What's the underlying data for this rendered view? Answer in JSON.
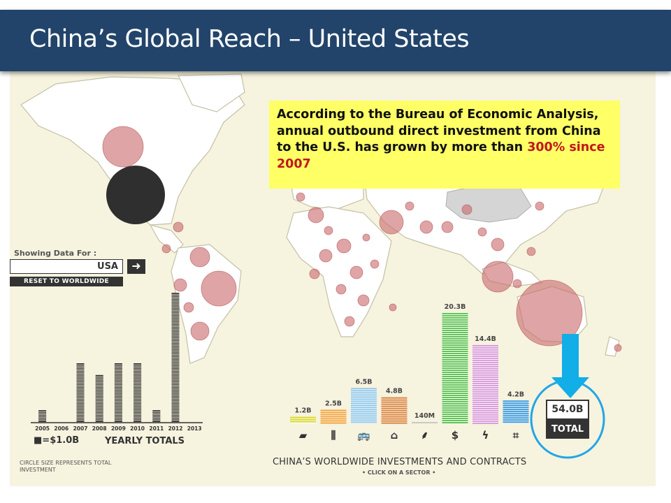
{
  "slide": {
    "title": "China’s Global Reach – United States",
    "callout_text": "According to the Bureau of Economic Analysis, annual outbound direct investment from China to the U.S. has grown by more than ",
    "callout_highlight": "300% since 2007",
    "callout_color": "#ffff66",
    "highlight_color": "#c0181a",
    "title_bar_color": "#22446a"
  },
  "map_controls": {
    "showing_label": "Showing Data For :",
    "country": "USA",
    "arrow_icon": "arrow-right-icon",
    "reset_label": "RESET TO WORLDWIDE",
    "bubble_note": "CIRCLE SIZE REPRESENTS TOTAL INVESTMENT"
  },
  "chart_data": [
    {
      "type": "bar",
      "title": "YEARLY TOTALS",
      "legend": "=$1.0B",
      "unit": "$B",
      "categories": [
        "2005",
        "2006",
        "2007",
        "2008",
        "2009",
        "2010",
        "2011",
        "2012",
        "2013"
      ],
      "values": [
        1,
        0,
        5,
        4,
        5,
        5,
        1,
        11,
        0
      ],
      "color": "#2a2a2a"
    },
    {
      "type": "bar",
      "title": "CHINA’S WORLDWIDE INVESTMENTS AND CONTRACTS",
      "subtitle": "• CLICK ON A SECTOR •",
      "unit": "$B",
      "categories": [
        "metals",
        "logistics",
        "transport",
        "real-estate",
        "agriculture",
        "finance",
        "energy",
        "industry"
      ],
      "icons": [
        "metal-bar-icon",
        "road-icon",
        "car-bus-icon",
        "house-icon",
        "wheat-icon",
        "dollar-icon",
        "lightning-icon",
        "factory-icon"
      ],
      "values": [
        1.2,
        2.5,
        6.5,
        4.8,
        0.14,
        20.3,
        14.4,
        4.2
      ],
      "labels": [
        "1.2B",
        "2.5B",
        "6.5B",
        "4.8B",
        "140M",
        "20.3B",
        "14.4B",
        "4.2B"
      ],
      "colors": [
        "#d9d92e",
        "#f2a33a",
        "#8fc6e8",
        "#d9853b",
        "#c8c8c8",
        "#62c456",
        "#d89ad8",
        "#3a99d8"
      ],
      "ylim": [
        0,
        20.3
      ],
      "total_value": "54.0B",
      "total_label": "TOTAL"
    }
  ]
}
